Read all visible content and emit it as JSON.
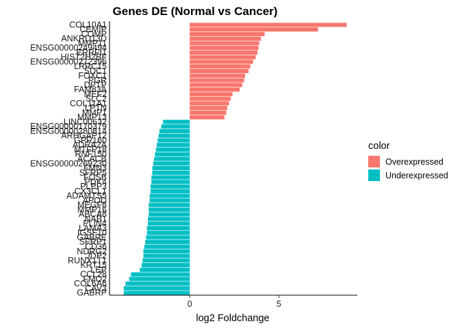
{
  "chart_data": {
    "type": "bar",
    "orientation": "horizontal",
    "title": "Genes DE (Normal vs Cancer)",
    "xlabel": "log2 Foldchange",
    "ylabel": "",
    "xlim": [
      -4.5,
      9.4
    ],
    "x_ticks": [
      0,
      5
    ],
    "grid": false,
    "legend": {
      "title": "color",
      "position": "right",
      "entries": [
        {
          "name": "Overexpressed",
          "color": "#F8766D"
        },
        {
          "name": "Underexpressed",
          "color": "#00BFC4"
        }
      ]
    },
    "colors": {
      "Overexpressed": "#F8766D",
      "Underexpressed": "#00BFC4"
    },
    "categories": [
      "COL10A1",
      "CEMIP",
      "COMP",
      "ANKRD13D",
      "MMP11",
      "ENSG00000249494",
      "ERRFI1",
      "HIST2H2BF",
      "ENSG00000272396",
      "LRRC15",
      "SDC1",
      "FOXC1",
      "PGR",
      "DPTP",
      "FAM83A",
      "MEF2",
      "SLC2",
      "COL11A1",
      "LPTN",
      "MMP1",
      "MMP13",
      "LINC00632",
      "ENSG00000170379",
      "ENSG00000280814",
      "ARHGAP12",
      "GPR160",
      "ADRA2A",
      "MTFP18",
      "RNF150",
      "ACACB",
      "ENSG00000269230",
      "FMN3",
      "SFRP5",
      "FOSB",
      "PDK4",
      "PLPP3",
      "CX3CL1",
      "ADAMTS5",
      "APOD",
      "MEGF8",
      "MMP16",
      "ABCA8",
      "NAB1",
      "PLIN4",
      "LAMA3",
      "IGSF10",
      "GABRE",
      "SFRP1",
      "CD36",
      "NDRG2",
      "JDP2",
      "RUNX1T1",
      "KRT15",
      "LEP",
      "CCL28",
      "FMO2",
      "COL6A6",
      "CAV3",
      "GABRP"
    ],
    "values": [
      8.8,
      7.2,
      4.2,
      4.0,
      3.9,
      3.85,
      3.8,
      3.7,
      3.55,
      3.4,
      3.3,
      3.1,
      3.05,
      2.95,
      2.8,
      2.4,
      2.3,
      2.2,
      2.1,
      2.05,
      1.95,
      -1.5,
      -1.6,
      -1.7,
      -1.75,
      -1.8,
      -1.85,
      -1.9,
      -1.95,
      -2.0,
      -2.05,
      -2.1,
      -2.1,
      -2.15,
      -2.15,
      -2.2,
      -2.2,
      -2.25,
      -2.25,
      -2.3,
      -2.3,
      -2.3,
      -2.35,
      -2.35,
      -2.4,
      -2.4,
      -2.45,
      -2.5,
      -2.55,
      -2.6,
      -2.6,
      -2.65,
      -2.7,
      -2.8,
      -3.3,
      -3.4,
      -3.6,
      -3.7,
      -3.7
    ]
  }
}
